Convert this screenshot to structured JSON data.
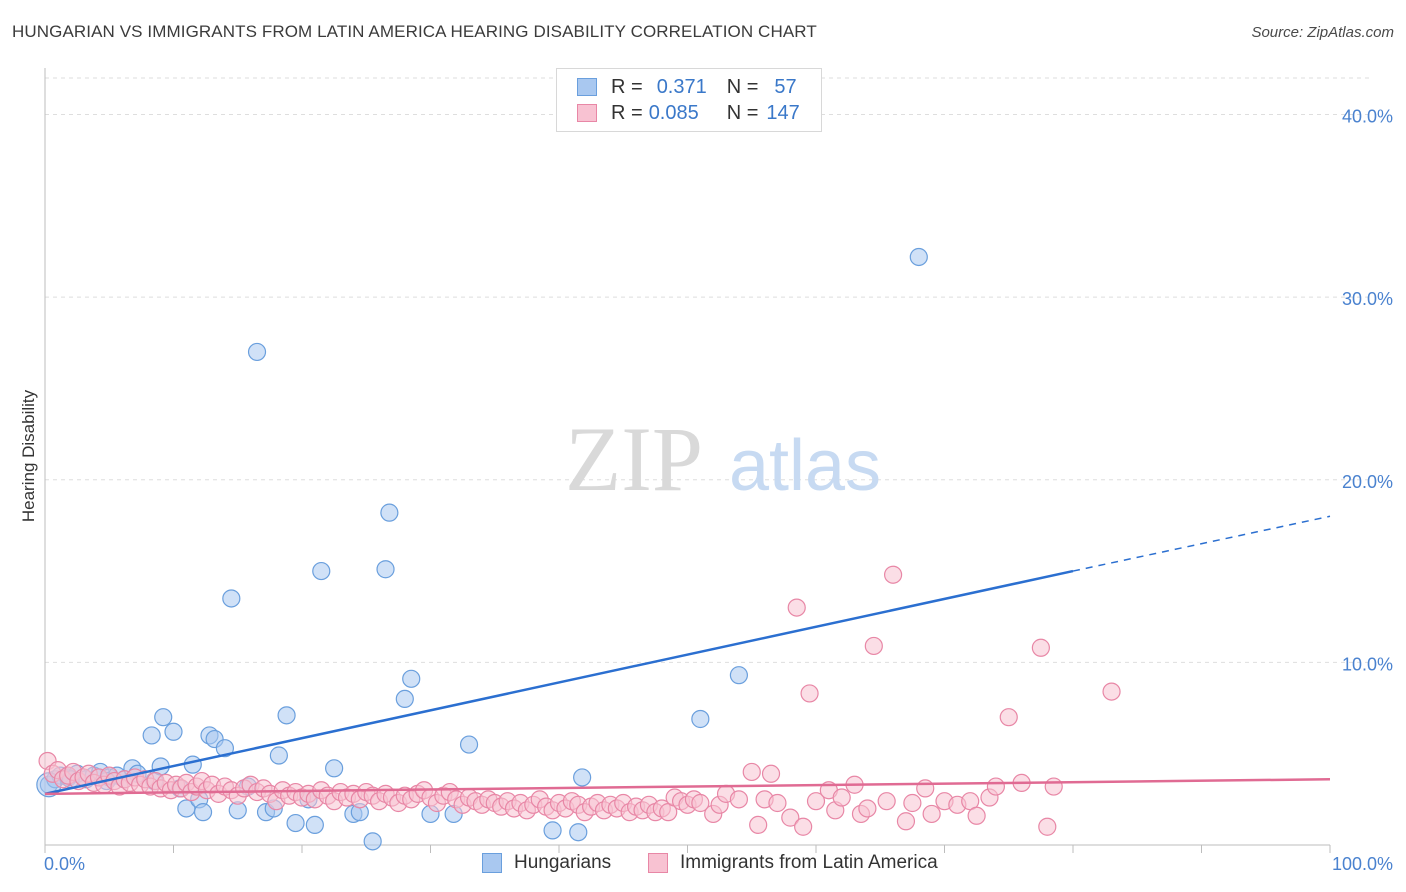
{
  "title": "HUNGARIAN VS IMMIGRANTS FROM LATIN AMERICA HEARING DISABILITY CORRELATION CHART",
  "source": "Source: ZipAtlas.com",
  "watermark": {
    "zip": "ZIP",
    "atlas": "atlas"
  },
  "legend_stats": [
    {
      "r_label": "R =",
      "r_value": "0.371",
      "n_label": "N =",
      "n_value": "57",
      "color": "#a9c8f0",
      "border": "#6a9fdd"
    },
    {
      "r_label": "R =",
      "r_value": "0.085",
      "n_label": "N =",
      "n_value": "147",
      "color": "#f8c2d2",
      "border": "#e887a6"
    }
  ],
  "chart_data": {
    "type": "scatter",
    "xlabel": "",
    "ylabel": "Hearing Disability",
    "xlim": [
      0,
      100
    ],
    "ylim": [
      0,
      42
    ],
    "x_tick_labels": [
      "0.0%",
      "100.0%"
    ],
    "y_ticks": [
      10,
      20,
      30,
      40
    ],
    "y_tick_labels": [
      "10.0%",
      "20.0%",
      "30.0%",
      "40.0%"
    ],
    "grid": true,
    "legend_position": "bottom",
    "series": [
      {
        "name": "Hungarians",
        "color": "#a9c8f0",
        "stroke": "#6a9fdd",
        "trend_color": "#2b6fd0",
        "trend": {
          "x0": 0,
          "y0": 2.8,
          "x1": 80,
          "y1": 15.0,
          "x_dash_end": 100,
          "y_dash_end": 18.0
        },
        "points": [
          [
            0.3,
            3.3
          ],
          [
            0.8,
            3.6
          ],
          [
            1.2,
            3.8
          ],
          [
            1.8,
            3.7
          ],
          [
            2.5,
            3.9
          ],
          [
            3.2,
            3.6
          ],
          [
            3.8,
            3.8
          ],
          [
            4.3,
            4.0
          ],
          [
            5.0,
            3.7
          ],
          [
            5.6,
            3.8
          ],
          [
            6.2,
            3.6
          ],
          [
            6.8,
            4.2
          ],
          [
            7.2,
            3.9
          ],
          [
            8.5,
            3.5
          ],
          [
            8.3,
            6.0
          ],
          [
            9.0,
            4.3
          ],
          [
            9.2,
            7.0
          ],
          [
            10.0,
            6.2
          ],
          [
            10.5,
            3.1
          ],
          [
            11.0,
            2.0
          ],
          [
            11.5,
            4.4
          ],
          [
            12.0,
            2.5
          ],
          [
            12.3,
            1.8
          ],
          [
            12.8,
            6.0
          ],
          [
            13.2,
            5.8
          ],
          [
            14.0,
            5.3
          ],
          [
            14.5,
            13.5
          ],
          [
            15.0,
            1.9
          ],
          [
            15.8,
            3.2
          ],
          [
            16.5,
            27.0
          ],
          [
            17.2,
            1.8
          ],
          [
            17.8,
            2.0
          ],
          [
            18.2,
            4.9
          ],
          [
            18.8,
            7.1
          ],
          [
            19.5,
            1.2
          ],
          [
            20.5,
            2.5
          ],
          [
            21.0,
            1.1
          ],
          [
            21.5,
            15.0
          ],
          [
            22.5,
            4.2
          ],
          [
            24.0,
            1.7
          ],
          [
            24.5,
            1.8
          ],
          [
            25.5,
            0.2
          ],
          [
            26.5,
            15.1
          ],
          [
            26.8,
            18.2
          ],
          [
            28.0,
            8.0
          ],
          [
            28.5,
            9.1
          ],
          [
            30.0,
            1.7
          ],
          [
            31.8,
            1.7
          ],
          [
            33.0,
            5.5
          ],
          [
            39.5,
            0.8
          ],
          [
            41.5,
            0.7
          ],
          [
            41.8,
            3.7
          ],
          [
            51.0,
            6.9
          ],
          [
            54.0,
            9.3
          ],
          [
            68.0,
            32.2
          ],
          [
            2.0,
            3.6
          ],
          [
            4.8,
            3.5
          ]
        ]
      },
      {
        "name": "Immigrants from Latin America",
        "color": "#f8c2d2",
        "stroke": "#e887a6",
        "trend_color": "#e06b93",
        "trend": {
          "x0": 0,
          "y0": 2.8,
          "x1": 100,
          "y1": 3.6
        },
        "points": [
          [
            0.2,
            4.6
          ],
          [
            0.6,
            3.9
          ],
          [
            1.0,
            4.1
          ],
          [
            1.4,
            3.6
          ],
          [
            1.8,
            3.8
          ],
          [
            2.2,
            4.0
          ],
          [
            2.6,
            3.5
          ],
          [
            3.0,
            3.7
          ],
          [
            3.4,
            3.9
          ],
          [
            3.8,
            3.4
          ],
          [
            4.2,
            3.7
          ],
          [
            4.6,
            3.3
          ],
          [
            5.0,
            3.8
          ],
          [
            5.4,
            3.5
          ],
          [
            5.8,
            3.2
          ],
          [
            6.2,
            3.6
          ],
          [
            6.6,
            3.4
          ],
          [
            7.0,
            3.7
          ],
          [
            7.4,
            3.3
          ],
          [
            7.8,
            3.6
          ],
          [
            8.2,
            3.2
          ],
          [
            8.6,
            3.5
          ],
          [
            9.0,
            3.1
          ],
          [
            9.4,
            3.4
          ],
          [
            9.8,
            3.0
          ],
          [
            10.2,
            3.3
          ],
          [
            10.6,
            3.1
          ],
          [
            11.0,
            3.4
          ],
          [
            11.4,
            2.9
          ],
          [
            11.8,
            3.2
          ],
          [
            12.2,
            3.5
          ],
          [
            12.6,
            3.0
          ],
          [
            13.0,
            3.3
          ],
          [
            13.5,
            2.8
          ],
          [
            14.0,
            3.2
          ],
          [
            14.5,
            3.0
          ],
          [
            15.0,
            2.7
          ],
          [
            15.5,
            3.1
          ],
          [
            16.0,
            3.3
          ],
          [
            16.5,
            2.9
          ],
          [
            17.0,
            3.1
          ],
          [
            17.5,
            2.8
          ],
          [
            18.0,
            2.4
          ],
          [
            18.5,
            3.0
          ],
          [
            19.0,
            2.7
          ],
          [
            19.5,
            2.9
          ],
          [
            20.0,
            2.6
          ],
          [
            20.5,
            2.8
          ],
          [
            21.0,
            2.5
          ],
          [
            21.5,
            3.0
          ],
          [
            22.0,
            2.7
          ],
          [
            22.5,
            2.4
          ],
          [
            23.0,
            2.9
          ],
          [
            23.5,
            2.6
          ],
          [
            24.0,
            2.8
          ],
          [
            24.5,
            2.5
          ],
          [
            25.0,
            2.9
          ],
          [
            25.5,
            2.7
          ],
          [
            26.0,
            2.4
          ],
          [
            26.5,
            2.8
          ],
          [
            27.0,
            2.6
          ],
          [
            27.5,
            2.3
          ],
          [
            28.0,
            2.7
          ],
          [
            28.5,
            2.5
          ],
          [
            29.0,
            2.8
          ],
          [
            29.5,
            3.0
          ],
          [
            30.0,
            2.6
          ],
          [
            30.5,
            2.3
          ],
          [
            31.0,
            2.7
          ],
          [
            31.5,
            2.9
          ],
          [
            32.0,
            2.5
          ],
          [
            32.5,
            2.2
          ],
          [
            33.0,
            2.6
          ],
          [
            33.5,
            2.4
          ],
          [
            34.0,
            2.2
          ],
          [
            34.5,
            2.5
          ],
          [
            35.0,
            2.3
          ],
          [
            35.5,
            2.1
          ],
          [
            36.0,
            2.4
          ],
          [
            36.5,
            2.0
          ],
          [
            37.0,
            2.3
          ],
          [
            37.5,
            1.9
          ],
          [
            38.0,
            2.2
          ],
          [
            38.5,
            2.5
          ],
          [
            39.0,
            2.1
          ],
          [
            39.5,
            1.9
          ],
          [
            40.0,
            2.3
          ],
          [
            40.5,
            2.0
          ],
          [
            41.0,
            2.4
          ],
          [
            41.5,
            2.2
          ],
          [
            42.0,
            1.8
          ],
          [
            42.5,
            2.1
          ],
          [
            43.0,
            2.3
          ],
          [
            43.5,
            1.9
          ],
          [
            44.0,
            2.2
          ],
          [
            44.5,
            2.0
          ],
          [
            45.0,
            2.3
          ],
          [
            45.5,
            1.8
          ],
          [
            46.0,
            2.1
          ],
          [
            46.5,
            1.9
          ],
          [
            47.0,
            2.2
          ],
          [
            47.5,
            1.8
          ],
          [
            48.0,
            2.0
          ],
          [
            48.5,
            1.8
          ],
          [
            49.0,
            2.6
          ],
          [
            49.5,
            2.4
          ],
          [
            50.0,
            2.2
          ],
          [
            50.5,
            2.5
          ],
          [
            51.0,
            2.3
          ],
          [
            52.0,
            1.7
          ],
          [
            52.5,
            2.2
          ],
          [
            53.0,
            2.8
          ],
          [
            54.0,
            2.5
          ],
          [
            55.0,
            4.0
          ],
          [
            55.5,
            1.1
          ],
          [
            56.0,
            2.5
          ],
          [
            56.5,
            3.9
          ],
          [
            57.0,
            2.3
          ],
          [
            58.0,
            1.5
          ],
          [
            58.5,
            13.0
          ],
          [
            59.0,
            1.0
          ],
          [
            59.5,
            8.3
          ],
          [
            60.0,
            2.4
          ],
          [
            61.0,
            3.0
          ],
          [
            61.5,
            1.9
          ],
          [
            62.0,
            2.6
          ],
          [
            63.0,
            3.3
          ],
          [
            63.5,
            1.7
          ],
          [
            64.0,
            2.0
          ],
          [
            64.5,
            10.9
          ],
          [
            65.5,
            2.4
          ],
          [
            66.0,
            14.8
          ],
          [
            67.0,
            1.3
          ],
          [
            67.5,
            2.3
          ],
          [
            68.5,
            3.1
          ],
          [
            69.0,
            1.7
          ],
          [
            70.0,
            2.4
          ],
          [
            71.0,
            2.2
          ],
          [
            72.0,
            2.4
          ],
          [
            72.5,
            1.6
          ],
          [
            73.5,
            2.6
          ],
          [
            74.0,
            3.2
          ],
          [
            75.0,
            7.0
          ],
          [
            76.0,
            3.4
          ],
          [
            77.5,
            10.8
          ],
          [
            78.0,
            1.0
          ],
          [
            78.5,
            3.2
          ],
          [
            83.0,
            8.4
          ]
        ]
      }
    ]
  }
}
